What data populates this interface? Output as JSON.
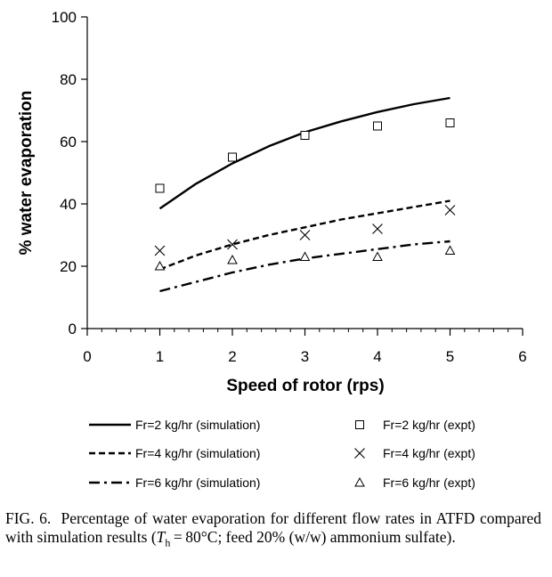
{
  "chart_data": {
    "type": "line",
    "xlabel": "Speed of rotor (rps)",
    "ylabel": "% water evaporation",
    "xlim": [
      0,
      6
    ],
    "ylim": [
      0,
      100
    ],
    "xticks": [
      "0",
      "1",
      "2",
      "3",
      "4",
      "5",
      "6"
    ],
    "yticks": [
      "0",
      "20",
      "40",
      "60",
      "80",
      "100"
    ],
    "grid": false,
    "legend_position": "bottom",
    "series": [
      {
        "name": "Fr=2 kg/hr (simulation)",
        "kind": "line",
        "style": "solid",
        "x": [
          1,
          1.5,
          2,
          2.5,
          3,
          3.5,
          4,
          4.5,
          5
        ],
        "y": [
          38.5,
          46.5,
          53,
          58.5,
          63,
          66.5,
          69.5,
          72,
          74
        ]
      },
      {
        "name": "Fr=4 kg/hr (simulation)",
        "kind": "line",
        "style": "dashed",
        "x": [
          1,
          1.5,
          2,
          2.5,
          3,
          3.5,
          4,
          4.5,
          5
        ],
        "y": [
          19,
          23.5,
          27,
          30,
          32.5,
          35,
          37,
          39,
          41
        ]
      },
      {
        "name": "Fr=6 kg/hr (simulation)",
        "kind": "line",
        "style": "dashdot",
        "x": [
          1,
          1.5,
          2,
          2.5,
          3,
          3.5,
          4,
          4.5,
          5
        ],
        "y": [
          12,
          15,
          18,
          20.5,
          22.5,
          24,
          25.5,
          27,
          28
        ]
      },
      {
        "name": "Fr=2 kg/hr (expt)",
        "kind": "scatter",
        "marker": "square",
        "x": [
          1,
          2,
          3,
          4,
          5
        ],
        "y": [
          45,
          55,
          62,
          65,
          66
        ]
      },
      {
        "name": "Fr=4 kg/hr (expt)",
        "kind": "scatter",
        "marker": "x",
        "x": [
          1,
          2,
          3,
          4,
          5
        ],
        "y": [
          25,
          27,
          30,
          32,
          38
        ]
      },
      {
        "name": "Fr=6 kg/hr (expt)",
        "kind": "scatter",
        "marker": "triangle",
        "x": [
          1,
          2,
          3,
          4,
          5
        ],
        "y": [
          20,
          22,
          23,
          23,
          25
        ]
      }
    ]
  },
  "caption": {
    "lead": "FIG. 6.  Percentage of water evaporation for different flow rates in ATFD compared with simulation results (",
    "sym": "T",
    "sub": "h",
    "rest": " = 80°C; feed 20% (w/w) ammonium sulfate)."
  }
}
